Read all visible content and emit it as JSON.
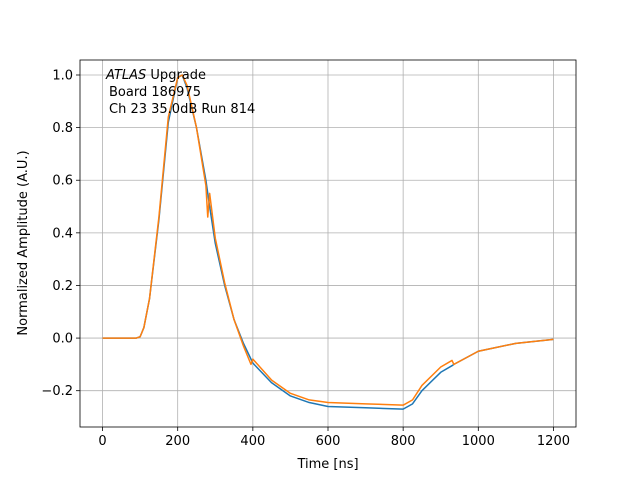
{
  "chart_data": {
    "type": "line",
    "annotation": {
      "emphasis": "ATLAS",
      "lines": [
        "Upgrade",
        "Board 186975",
        "Ch 23 35.0dB  Run 814"
      ]
    },
    "x_label": "Time [ns]",
    "y_label": "Normalized Amplitude (A.U.)",
    "x": [
      0,
      50,
      90,
      100,
      110,
      125,
      150,
      175,
      200,
      212,
      225,
      250,
      275,
      280,
      285,
      300,
      325,
      350,
      375,
      395,
      400,
      450,
      500,
      550,
      600,
      700,
      800,
      825,
      850,
      900,
      930,
      935,
      1000,
      1100,
      1200
    ],
    "series": [
      {
        "color": "#1f77b4",
        "values": [
          0,
          0,
          0,
          0.005,
          0.04,
          0.15,
          0.45,
          0.82,
          0.99,
          1.0,
          0.95,
          0.8,
          0.6,
          0.55,
          0.5,
          0.36,
          0.2,
          0.07,
          -0.02,
          -0.08,
          -0.095,
          -0.17,
          -0.22,
          -0.245,
          -0.26,
          -0.265,
          -0.27,
          -0.25,
          -0.2,
          -0.13,
          -0.105,
          -0.1,
          -0.05,
          -0.02,
          -0.005
        ]
      },
      {
        "color": "#ff7f0e",
        "values": [
          0,
          0,
          0,
          0.005,
          0.04,
          0.15,
          0.46,
          0.84,
          0.99,
          1.0,
          0.96,
          0.8,
          0.58,
          0.46,
          0.55,
          0.38,
          0.21,
          0.07,
          -0.03,
          -0.1,
          -0.08,
          -0.16,
          -0.21,
          -0.235,
          -0.245,
          -0.25,
          -0.255,
          -0.235,
          -0.18,
          -0.11,
          -0.085,
          -0.1,
          -0.05,
          -0.02,
          -0.005
        ]
      }
    ],
    "xlim": [
      -60,
      1260
    ],
    "xticks": [
      0,
      200,
      400,
      600,
      800,
      1000,
      1200
    ],
    "ylim": [
      -0.338,
      1.057
    ],
    "yticks": [
      {
        "value": -0.2,
        "label": "−0.2"
      },
      {
        "value": 0,
        "label": "0.0"
      },
      0.2,
      0.4,
      0.6,
      0.8,
      {
        "value": 1,
        "label": "1.0"
      }
    ],
    "grid": true
  }
}
